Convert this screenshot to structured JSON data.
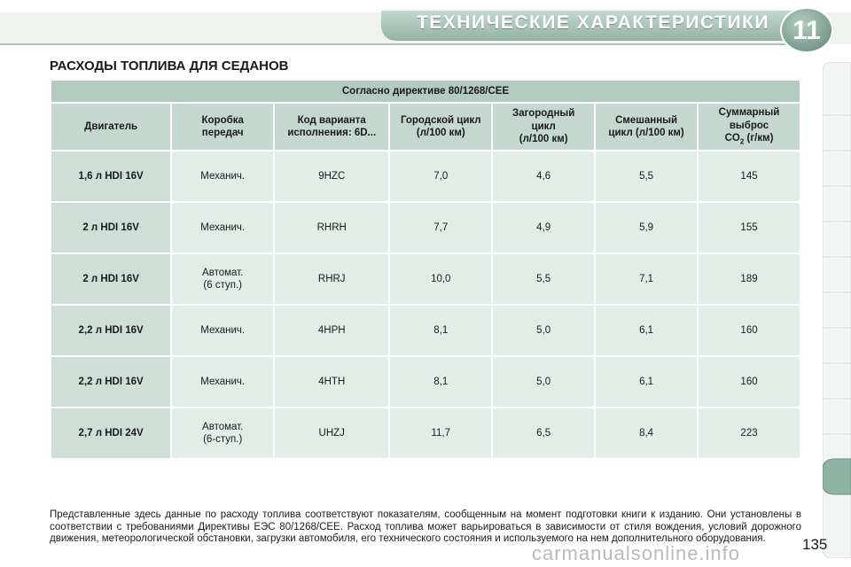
{
  "header": {
    "title": "ТЕХНИЧЕСКИЕ ХАРАКТЕРИСТИКИ",
    "chapter_number": "11"
  },
  "section_title": "РАСХОДЫ ТОПЛИВА ДЛЯ СЕДАНОВ",
  "table": {
    "caption": "Согласно директиве 80/1268/CEE",
    "columns": [
      {
        "line1": "Двигатель",
        "line2": ""
      },
      {
        "line1": "Коробка",
        "line2": "передач"
      },
      {
        "line1": "Код варианта",
        "line2": "исполнения: 6D..."
      },
      {
        "line1": "Городской цикл",
        "line2": "(л/100 км)"
      },
      {
        "line1": "Загородный цикл",
        "line2": "(л/100 км)"
      },
      {
        "line1": "Смешанный",
        "line2": "цикл (л/100 км)"
      },
      {
        "line1": "Суммарный выброс",
        "line2_pre": "CO",
        "line2_sub": "2",
        "line2_post": " (г/км)"
      }
    ],
    "rows": [
      {
        "engine": "1,6 л HDI 16V",
        "gearbox": "Механич.",
        "gearbox2": "",
        "code": "9HZC",
        "urban": "7,0",
        "extra": "4,6",
        "combined": "5,5",
        "co2": "145"
      },
      {
        "engine": "2 л HDI 16V",
        "gearbox": "Механич.",
        "gearbox2": "",
        "code": "RHRH",
        "urban": "7,7",
        "extra": "4,9",
        "combined": "5,9",
        "co2": "155"
      },
      {
        "engine": "2 л HDI 16V",
        "gearbox": "Автомат.",
        "gearbox2": "(6 ступ.)",
        "code": "RHRJ",
        "urban": "10,0",
        "extra": "5,5",
        "combined": "7,1",
        "co2": "189"
      },
      {
        "engine": "2,2 л HDI 16V",
        "gearbox": "Механич.",
        "gearbox2": "",
        "code": "4HPH",
        "urban": "8,1",
        "extra": "5,0",
        "combined": "6,1",
        "co2": "160"
      },
      {
        "engine": "2,2 л HDI 16V",
        "gearbox": "Механич.",
        "gearbox2": "",
        "code": "4HTH",
        "urban": "8,1",
        "extra": "5,0",
        "combined": "6,1",
        "co2": "160"
      },
      {
        "engine": "2,7 л HDI 24V",
        "gearbox": "Автомат.",
        "gearbox2": "(6-ступ.)",
        "code": "UHZJ",
        "urban": "11,7",
        "extra": "6,5",
        "combined": "8,4",
        "co2": "223"
      }
    ]
  },
  "footnote": "Представленные здесь данные по расходу топлива соответствуют показателям, сообщенным на момент подготовки книги к изданию. Они установлены в соответствии с требованиями Директивы ЕЭС 80/1268/CEE. Расход топлива может варьироваться в зависимости от стиля вождения, условий дорожного движения, метеорологической обстановки, загрузки автомобиля, его технического состояния и используемого на нем дополнительного оборудования.",
  "page_number": "135",
  "watermark": "carmanualsonline.info",
  "colors": {
    "header_band": "#a9c4b8",
    "header_dark": "#7c9c8f",
    "caption_bg": "#b3cbc0",
    "column_head_bg": "#c5d8cf",
    "cell_bg": "#e3ece7",
    "engine_cell_bg": "#cfdfd7",
    "active_tab": "#8fb3a4"
  }
}
